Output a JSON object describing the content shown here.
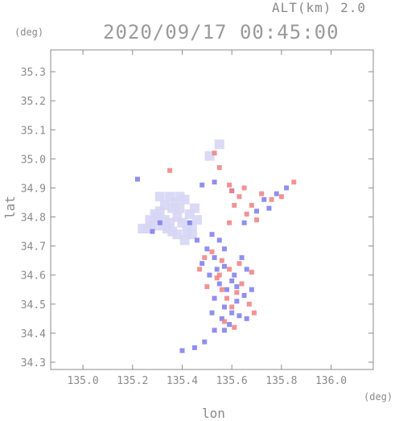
{
  "header": {
    "altitude_label": "ALT(km) 2.0",
    "datetime": "2020/09/17 00:45:00"
  },
  "chart_data": {
    "type": "scatter",
    "title": "2020/09/17 00:45:00",
    "subtitle": "ALT(km) 2.0",
    "xlabel": "lon",
    "ylabel": "lat",
    "x_unit": "(deg)",
    "y_unit": "(deg)",
    "xlim": [
      134.87,
      136.17
    ],
    "ylim": [
      34.275,
      35.375
    ],
    "xticks": [
      135.0,
      135.2,
      135.4,
      135.6,
      135.8,
      136.0
    ],
    "xtick_labels": [
      "135.0",
      "135.2",
      "135.4",
      "135.6",
      "135.8",
      "136.0"
    ],
    "yticks": [
      34.3,
      34.4,
      34.5,
      34.6,
      34.7,
      34.8,
      34.9,
      35.0,
      35.1,
      35.2,
      35.3
    ],
    "ytick_labels": [
      "34.3",
      "34.4",
      "34.5",
      "34.6",
      "34.7",
      "34.8",
      "34.9",
      "35.0",
      "35.1",
      "35.2",
      "35.3"
    ],
    "grid": false,
    "colors": {
      "approaching": "#7b7bf0",
      "receding": "#f08080",
      "weak": "#d6d6f5",
      "axis": "#8c8c8c"
    },
    "series": [
      {
        "color_key": "weak",
        "points": [
          [
            135.26,
            34.76
          ],
          [
            135.28,
            34.77
          ],
          [
            135.27,
            34.79
          ],
          [
            135.3,
            34.8
          ],
          [
            135.31,
            34.82
          ],
          [
            135.33,
            34.79
          ],
          [
            135.35,
            34.78
          ],
          [
            135.33,
            34.84
          ],
          [
            135.36,
            34.83
          ],
          [
            135.38,
            34.8
          ],
          [
            135.29,
            34.81
          ],
          [
            135.34,
            34.76
          ],
          [
            135.37,
            34.85
          ],
          [
            135.39,
            34.87
          ],
          [
            135.41,
            34.86
          ],
          [
            135.4,
            34.78
          ],
          [
            135.42,
            34.75
          ],
          [
            135.44,
            34.77
          ],
          [
            135.43,
            34.81
          ],
          [
            135.45,
            34.83
          ],
          [
            135.38,
            34.74
          ],
          [
            135.36,
            34.75
          ],
          [
            135.32,
            34.77
          ],
          [
            135.41,
            34.72
          ],
          [
            135.44,
            34.74
          ],
          [
            135.31,
            34.87
          ],
          [
            135.35,
            34.87
          ],
          [
            135.39,
            34.83
          ],
          [
            135.24,
            34.76
          ],
          [
            135.46,
            34.79
          ],
          [
            135.55,
            35.05
          ],
          [
            135.51,
            35.01
          ]
        ]
      },
      {
        "color_key": "approaching",
        "points": [
          [
            135.28,
            34.75
          ],
          [
            135.31,
            34.78
          ],
          [
            135.43,
            34.78
          ],
          [
            135.46,
            34.72
          ],
          [
            135.52,
            34.74
          ],
          [
            135.55,
            34.72
          ],
          [
            135.53,
            34.66
          ],
          [
            135.57,
            34.63
          ],
          [
            135.51,
            34.6
          ],
          [
            135.55,
            34.57
          ],
          [
            135.58,
            34.55
          ],
          [
            135.53,
            34.52
          ],
          [
            135.57,
            34.49
          ],
          [
            135.6,
            34.47
          ],
          [
            135.56,
            34.45
          ],
          [
            135.59,
            34.43
          ],
          [
            135.62,
            34.51
          ],
          [
            135.65,
            34.53
          ],
          [
            135.61,
            34.6
          ],
          [
            135.64,
            34.66
          ],
          [
            135.57,
            34.69
          ],
          [
            135.5,
            34.69
          ],
          [
            135.48,
            34.64
          ],
          [
            135.54,
            34.62
          ],
          [
            135.6,
            34.58
          ],
          [
            135.66,
            34.62
          ],
          [
            135.53,
            34.41
          ],
          [
            135.57,
            34.41
          ],
          [
            135.63,
            34.46
          ],
          [
            135.73,
            34.86
          ],
          [
            135.78,
            34.88
          ],
          [
            135.82,
            34.9
          ],
          [
            135.7,
            34.82
          ],
          [
            135.65,
            34.78
          ],
          [
            135.75,
            34.83
          ],
          [
            135.48,
            34.91
          ],
          [
            135.53,
            34.92
          ],
          [
            135.6,
            34.89
          ],
          [
            135.4,
            34.34
          ],
          [
            135.45,
            34.35
          ],
          [
            135.49,
            34.37
          ],
          [
            135.22,
            34.93
          ],
          [
            135.52,
            34.47
          ],
          [
            135.68,
            34.55
          ],
          [
            135.66,
            34.45
          ],
          [
            135.62,
            34.56
          ]
        ]
      },
      {
        "color_key": "receding",
        "points": [
          [
            135.52,
            34.68
          ],
          [
            135.56,
            34.65
          ],
          [
            135.59,
            34.62
          ],
          [
            135.63,
            34.64
          ],
          [
            135.55,
            34.6
          ],
          [
            135.49,
            34.66
          ],
          [
            135.58,
            34.52
          ],
          [
            135.62,
            34.54
          ],
          [
            135.6,
            34.49
          ],
          [
            135.57,
            34.44
          ],
          [
            135.67,
            34.5
          ],
          [
            135.61,
            34.42
          ],
          [
            135.6,
            34.89
          ],
          [
            135.63,
            34.87
          ],
          [
            135.61,
            34.84
          ],
          [
            135.65,
            34.9
          ],
          [
            135.72,
            34.88
          ],
          [
            135.76,
            34.86
          ],
          [
            135.8,
            34.87
          ],
          [
            135.68,
            34.84
          ],
          [
            135.55,
            34.97
          ],
          [
            135.53,
            35.02
          ],
          [
            135.54,
            34.59
          ],
          [
            135.5,
            34.56
          ],
          [
            135.64,
            34.57
          ],
          [
            135.68,
            34.61
          ],
          [
            135.56,
            34.55
          ],
          [
            135.59,
            34.91
          ],
          [
            135.85,
            34.92
          ],
          [
            135.69,
            34.47
          ],
          [
            135.47,
            34.62
          ],
          [
            135.7,
            34.79
          ],
          [
            135.66,
            34.81
          ],
          [
            135.35,
            34.96
          ],
          [
            135.59,
            34.78
          ]
        ]
      }
    ]
  }
}
